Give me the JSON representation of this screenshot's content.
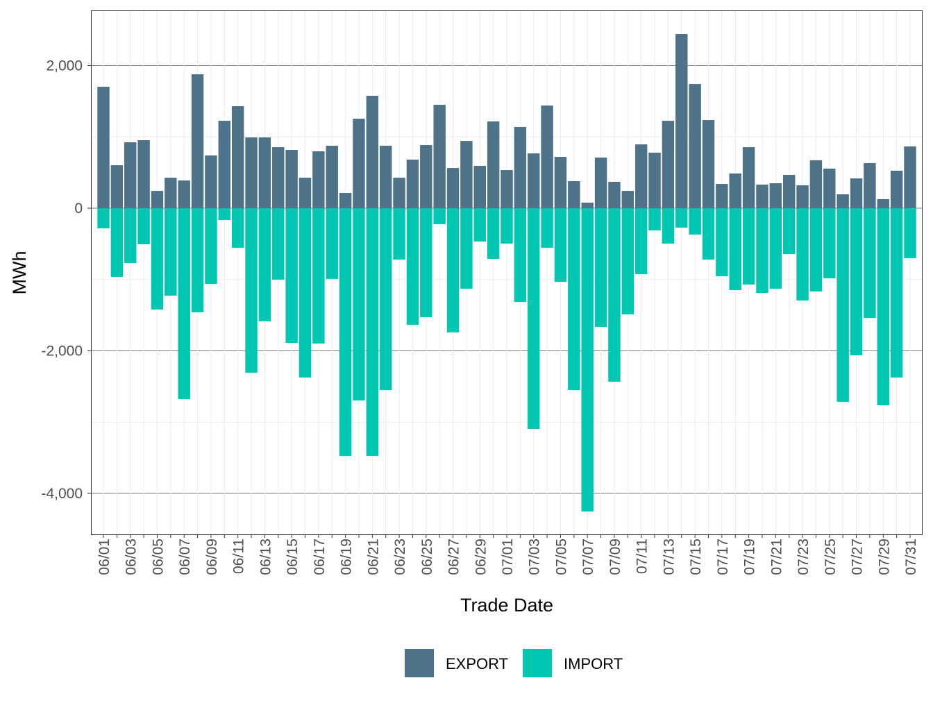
{
  "chart_data": {
    "type": "bar",
    "stacked": "diverging",
    "title": "",
    "xlabel": "Trade Date",
    "ylabel": "MWh",
    "ylim": [
      -4574,
      2774
    ],
    "yticks": [
      2000,
      0,
      -2000,
      -4000
    ],
    "ytick_labels": [
      "2,000",
      "0",
      "-2,000",
      "-4,000"
    ],
    "grid": true,
    "legend_position": "bottom",
    "categories": [
      "06/01",
      "06/02",
      "06/03",
      "06/04",
      "06/05",
      "06/06",
      "06/07",
      "06/08",
      "06/09",
      "06/10",
      "06/11",
      "06/12",
      "06/13",
      "06/14",
      "06/15",
      "06/16",
      "06/17",
      "06/18",
      "06/19",
      "06/20",
      "06/21",
      "06/22",
      "06/23",
      "06/24",
      "06/25",
      "06/26",
      "06/27",
      "06/28",
      "06/29",
      "06/30",
      "07/01",
      "07/02",
      "07/03",
      "07/04",
      "07/05",
      "07/06",
      "07/07",
      "07/08",
      "07/09",
      "07/10",
      "07/11",
      "07/12",
      "07/13",
      "07/14",
      "07/15",
      "07/16",
      "07/17",
      "07/18",
      "07/19",
      "07/20",
      "07/21",
      "07/22",
      "07/23",
      "07/24",
      "07/25",
      "07/26",
      "07/27",
      "07/28",
      "07/29",
      "07/30",
      "07/31"
    ],
    "series": [
      {
        "name": "EXPORT",
        "color": "#4E7287",
        "values": [
          1703,
          603,
          925,
          954,
          243,
          428,
          389,
          1878,
          740,
          1226,
          1431,
          993,
          993,
          856,
          818,
          428,
          798,
          876,
          214,
          1255,
          1577,
          876,
          428,
          681,
          886,
          1450,
          564,
          944,
          594,
          1217,
          535,
          1139,
          769,
          1440,
          720,
          380,
          78,
          710,
          370,
          243,
          895,
          779,
          1226,
          2443,
          1742,
          1236,
          341,
          487,
          856,
          331,
          350,
          467,
          321,
          672,
          555,
          195,
          418,
          633,
          127,
          526,
          866
        ]
      },
      {
        "name": "IMPORT",
        "color": "#00C7B1",
        "values": [
          -282,
          -963,
          -769,
          -506,
          -1421,
          -1226,
          -2676,
          -1460,
          -1061,
          -165,
          -555,
          -2307,
          -1586,
          -1002,
          -1888,
          -2375,
          -1898,
          -993,
          -3474,
          -2696,
          -3474,
          -2550,
          -720,
          -1635,
          -1528,
          -224,
          -1742,
          -1129,
          -467,
          -710,
          -496,
          -1314,
          -3095,
          -555,
          -1032,
          -2550,
          -4253,
          -1664,
          -2433,
          -1489,
          -925,
          -311,
          -496,
          -273,
          -370,
          -720,
          -954,
          -1148,
          -1071,
          -1187,
          -1129,
          -642,
          -1294,
          -1168,
          -983,
          -2715,
          -2063,
          -1538,
          -2764,
          -2375,
          -701
        ]
      }
    ]
  }
}
